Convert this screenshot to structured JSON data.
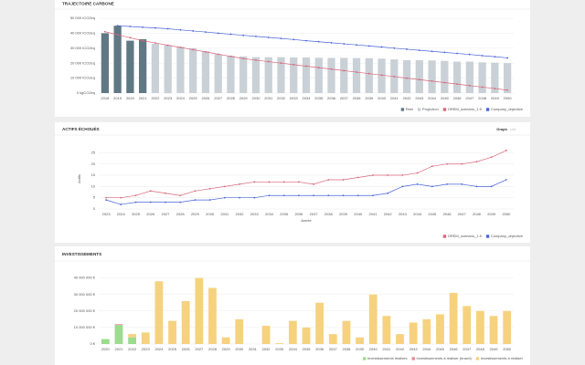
{
  "chart_data": [
    {
      "type": "bar",
      "title": "TRAJECTOIRE CARBONE",
      "stacked": false,
      "categories": [
        "2018",
        "2019",
        "2020",
        "2021",
        "2022",
        "2023",
        "2024",
        "2025",
        "2026",
        "2027",
        "2028",
        "2029",
        "2030",
        "2031",
        "2032",
        "2033",
        "2034",
        "2035",
        "2036",
        "2037",
        "2038",
        "2039",
        "2040",
        "2041",
        "2042",
        "2043",
        "2044",
        "2045",
        "2046",
        "2047",
        "2048",
        "2049",
        "2050"
      ],
      "series": [
        {
          "name": "Réel",
          "type": "bar",
          "color": "#5f7884",
          "values": [
            40000,
            45000,
            35000,
            36000,
            null,
            null,
            null,
            null,
            null,
            null,
            null,
            null,
            null,
            null,
            null,
            null,
            null,
            null,
            null,
            null,
            null,
            null,
            null,
            null,
            null,
            null,
            null,
            null,
            null,
            null,
            null,
            null,
            null
          ]
        },
        {
          "name": "Projection",
          "type": "bar",
          "color": "#c9d1d7",
          "values": [
            null,
            null,
            null,
            null,
            33000,
            32000,
            31000,
            30000,
            28000,
            26000,
            25000,
            24500,
            24000,
            24000,
            24000,
            23800,
            23800,
            23600,
            23500,
            23500,
            23400,
            23300,
            23000,
            22500,
            22000,
            22000,
            21800,
            21500,
            21000,
            21000,
            20500,
            20300,
            20000
          ]
        },
        {
          "name": "OREM_scenario_1.5",
          "type": "line",
          "color": "#d9667a",
          "values": [
            41000,
            39000,
            37000,
            35000,
            33500,
            32000,
            30500,
            29000,
            27500,
            26000,
            24500,
            23000,
            22000,
            21000,
            20000,
            19000,
            18000,
            17000,
            16000,
            15000,
            14000,
            13000,
            12000,
            11000,
            10000,
            9000,
            8000,
            7000,
            6000,
            5000,
            4000,
            3000,
            2000
          ]
        },
        {
          "name": "Company_objective",
          "type": "line",
          "color": "#4a64d8",
          "values": [
            null,
            45000,
            44500,
            44000,
            43500,
            43000,
            42200,
            41500,
            40800,
            40000,
            39300,
            38600,
            37900,
            37200,
            36500,
            35800,
            35000,
            34300,
            33600,
            32900,
            32200,
            31500,
            30800,
            30000,
            29300,
            28600,
            27900,
            27200,
            26500,
            25800,
            25000,
            24300,
            23500
          ]
        }
      ],
      "ylim": [
        0,
        50000
      ],
      "yticks": [
        {
          "value": 0,
          "label": "0 kgCO2eq"
        },
        {
          "value": 10000,
          "label": "10 000 tCO2eq"
        },
        {
          "value": 20000,
          "label": "20 000 tCO2eq"
        },
        {
          "value": 30000,
          "label": "30 000 tCO2eq"
        },
        {
          "value": 40000,
          "label": "40 000 tCO2eq"
        },
        {
          "value": 50000,
          "label": "50 000 tCO2eq"
        }
      ],
      "grid": true
    },
    {
      "type": "line",
      "title": "ACTIFS ÉCHOUÉS",
      "tabs": [
        "Graph",
        "List"
      ],
      "y_label": "Actifs",
      "x_label": "Année",
      "categories": [
        "2023",
        "2024",
        "2025",
        "2026",
        "2027",
        "2028",
        "2029",
        "2030",
        "2031",
        "2032",
        "2033",
        "2034",
        "2035",
        "2036",
        "2037",
        "2038",
        "2039",
        "2040",
        "2041",
        "2042",
        "2043",
        "2044",
        "2045",
        "2046",
        "2047",
        "2048",
        "2049",
        "2050"
      ],
      "series": [
        {
          "name": "OREM_scenario_1.5",
          "type": "line",
          "color": "#d9667a",
          "values": [
            5,
            5,
            6,
            8,
            7,
            6,
            8,
            9,
            10,
            11,
            12,
            12,
            12,
            12,
            11,
            13,
            13,
            14,
            15,
            15,
            15,
            16,
            19,
            20,
            20,
            21,
            23,
            26
          ]
        },
        {
          "name": "Company_objective",
          "type": "line",
          "color": "#4a64d8",
          "values": [
            4,
            2,
            3,
            3,
            3,
            3,
            4,
            4,
            5,
            5,
            5,
            6,
            6,
            6,
            6,
            6,
            6,
            6,
            6,
            7,
            10,
            11,
            10,
            11,
            11,
            10,
            10,
            13
          ]
        }
      ],
      "ylim": [
        0,
        28
      ],
      "yticks": [
        0,
        5,
        10,
        15,
        20,
        25
      ],
      "grid": true
    },
    {
      "type": "bar",
      "title": "INVESTISSEMENTS",
      "stacked": true,
      "categories": [
        "2020",
        "2021",
        "2022",
        "2023",
        "2024",
        "2025",
        "2026",
        "2027",
        "2028",
        "2029",
        "2030",
        "2031",
        "2032",
        "2033",
        "2034",
        "2035",
        "2036",
        "2037",
        "2038",
        "2039",
        "2040",
        "2041",
        "2042",
        "2043",
        "2044",
        "2045",
        "2046",
        "2047",
        "2048",
        "2049",
        "2050"
      ],
      "series": [
        {
          "name": "Investissements réalisés",
          "type": "bar",
          "color": "#9bdc8e",
          "values": [
            3000000,
            11500000,
            4000000,
            0,
            0,
            0,
            0,
            0,
            0,
            0,
            0,
            0,
            0,
            0,
            0,
            0,
            0,
            0,
            0,
            0,
            0,
            0,
            0,
            0,
            0,
            0,
            0,
            0,
            0,
            0,
            0
          ]
        },
        {
          "name": "Investissements à réaliser (brand)",
          "type": "bar",
          "color": "#e58a98",
          "values": [
            0,
            500000,
            0,
            0,
            0,
            0,
            0,
            0,
            0,
            0,
            0,
            0,
            0,
            0,
            0,
            0,
            0,
            0,
            0,
            0,
            0,
            0,
            0,
            0,
            0,
            0,
            0,
            0,
            0,
            0,
            0
          ]
        },
        {
          "name": "Investissements à réaliser",
          "type": "bar",
          "color": "#f6d27f",
          "values": [
            0,
            0,
            2000000,
            7000000,
            38000000,
            14000000,
            26000000,
            40000000,
            34000000,
            4000000,
            15000000,
            0,
            11000000,
            500000,
            14000000,
            10000000,
            25000000,
            6000000,
            14000000,
            4000000,
            30000000,
            17000000,
            6000000,
            13000000,
            15000000,
            18000000,
            31000000,
            23000000,
            20000000,
            17000000,
            20000000
          ]
        }
      ],
      "ylim": [
        0,
        42000000
      ],
      "yticks": [
        {
          "value": 0,
          "label": "0 €"
        },
        {
          "value": 10000000,
          "label": "10 000 000 €"
        },
        {
          "value": 20000000,
          "label": "20 000 000 €"
        },
        {
          "value": 30000000,
          "label": "30 000 000 €"
        },
        {
          "value": 40000000,
          "label": "40 000 000 €"
        }
      ],
      "grid": true
    }
  ]
}
